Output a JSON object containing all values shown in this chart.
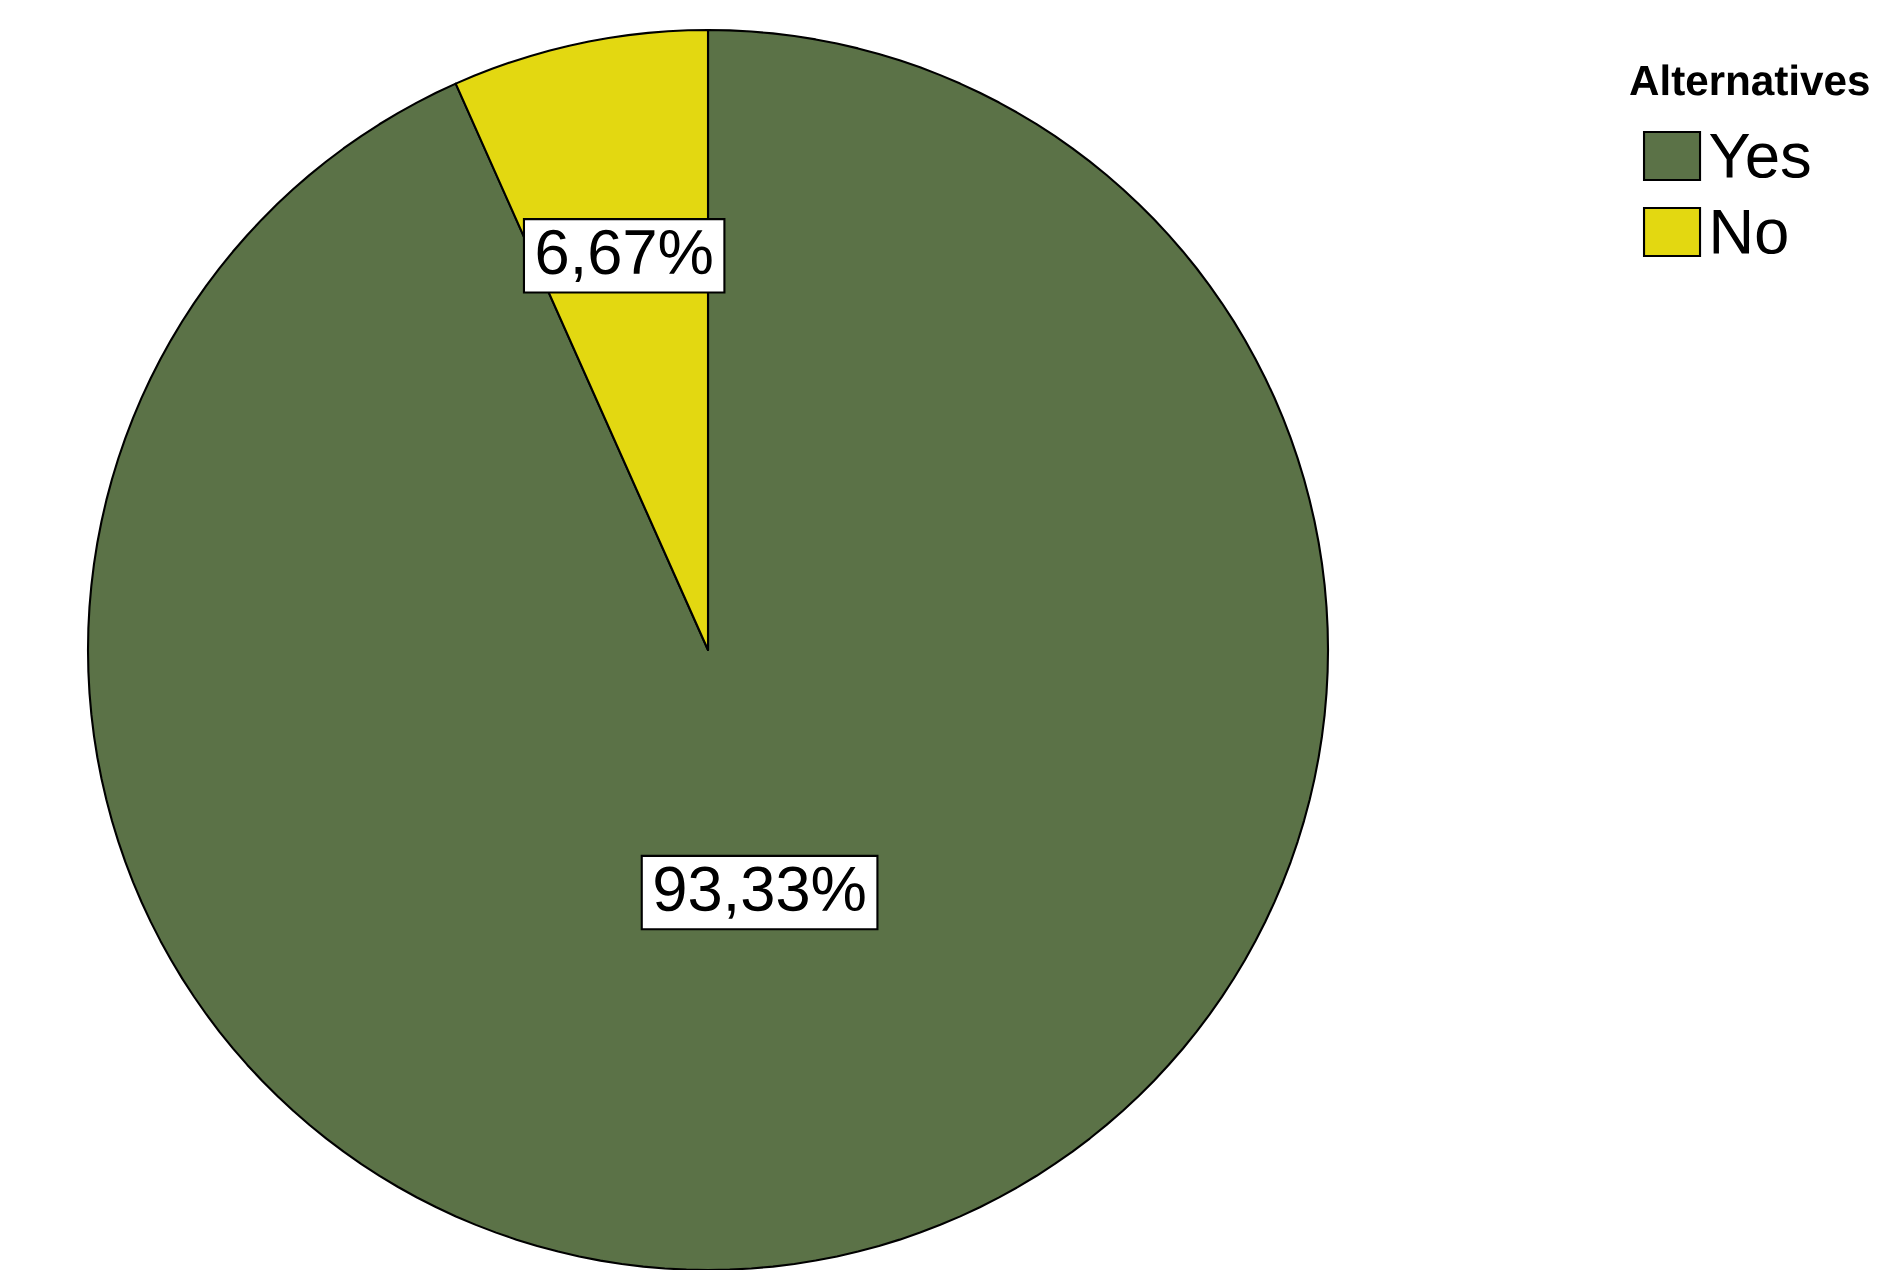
{
  "chart_data": {
    "type": "pie",
    "legend_title": "Alternatives",
    "categories": [
      "Yes",
      "No"
    ],
    "values": [
      93.33,
      6.67
    ],
    "colors": [
      "#5b7247",
      "#e3d811"
    ],
    "value_labels": [
      "93,33%",
      "6,67%"
    ],
    "legend": "top right"
  }
}
